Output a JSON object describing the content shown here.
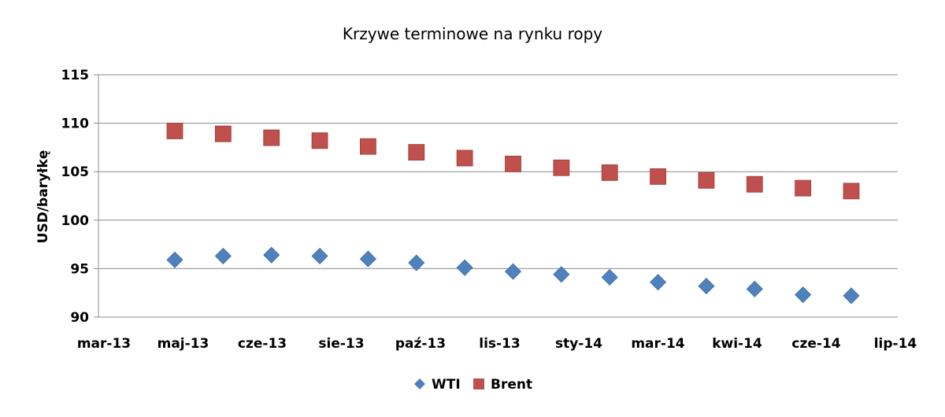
{
  "chart_data": {
    "type": "scatter",
    "title": "Krzywe terminowe na rynku ropy",
    "xlabel": "",
    "ylabel": "USD/baryłkę",
    "ylim": [
      90,
      115
    ],
    "y_ticks": [
      90,
      95,
      100,
      105,
      110,
      115
    ],
    "x_tick_labels": [
      "mar-13",
      "maj-13",
      "cze-13",
      "sie-13",
      "paź-13",
      "lis-13",
      "sty-14",
      "mar-14",
      "kwi-14",
      "cze-14",
      "lip-14"
    ],
    "grid": "horizontal",
    "legend_position": "bottom",
    "series": [
      {
        "name": "WTI",
        "marker": "diamond",
        "color": "#4F81BD",
        "values": [
          95.9,
          96.3,
          96.4,
          96.3,
          96.0,
          95.6,
          95.1,
          94.7,
          94.4,
          94.1,
          93.6,
          93.2,
          92.9,
          92.3,
          92.2
        ]
      },
      {
        "name": "Brent",
        "marker": "square",
        "color": "#C0504D",
        "values": [
          109.2,
          108.9,
          108.5,
          108.2,
          107.6,
          107.0,
          106.4,
          105.8,
          105.4,
          104.9,
          104.5,
          104.1,
          103.7,
          103.3,
          103.0
        ]
      }
    ]
  }
}
